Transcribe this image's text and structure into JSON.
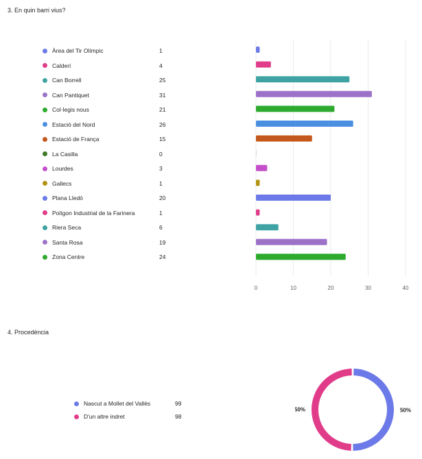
{
  "q3": {
    "title": "3. En quin barri vius?"
  },
  "q4": {
    "title": "4. Procedència"
  },
  "chart_data": [
    {
      "type": "bar",
      "orientation": "horizontal",
      "categories": [
        "Àrea del Tir Olímpic",
        "Calderí",
        "Can Borrell",
        "Can Pantiquet",
        "Col·legis nous",
        "Estació del Nord",
        "Estació de França",
        "La Casilla",
        "Lourdes",
        "Gallecs",
        "Plana Lledó",
        "Polígon Industrial de la Farinera",
        "Riera Seca",
        "Santa Rosa",
        "Zona Centre"
      ],
      "values": [
        1,
        4,
        25,
        31,
        21,
        26,
        15,
        0,
        3,
        1,
        20,
        1,
        6,
        19,
        24
      ],
      "colors": [
        "#6b7ae8",
        "#e03c8a",
        "#3fa3a3",
        "#9c72c9",
        "#2eab2e",
        "#4a8fe0",
        "#c4571c",
        "#3e7a26",
        "#c44fc9",
        "#b39212",
        "#6b7ae8",
        "#e03c8a",
        "#3fa3a3",
        "#9c72c9",
        "#2eab2e"
      ],
      "xlim": [
        0,
        40
      ],
      "xticks": [
        "0",
        "10",
        "20",
        "30",
        "40"
      ],
      "grid": true,
      "legend_placement": "left"
    },
    {
      "type": "pie",
      "style": "donut",
      "categories": [
        "Nascut a Mollet del Vallès",
        "D'un altre indret"
      ],
      "values": [
        99,
        98
      ],
      "data_labels": [
        "50%",
        "50%"
      ],
      "colors": [
        "#6b7ae8",
        "#e03c8a"
      ],
      "legend_placement": "left"
    }
  ]
}
